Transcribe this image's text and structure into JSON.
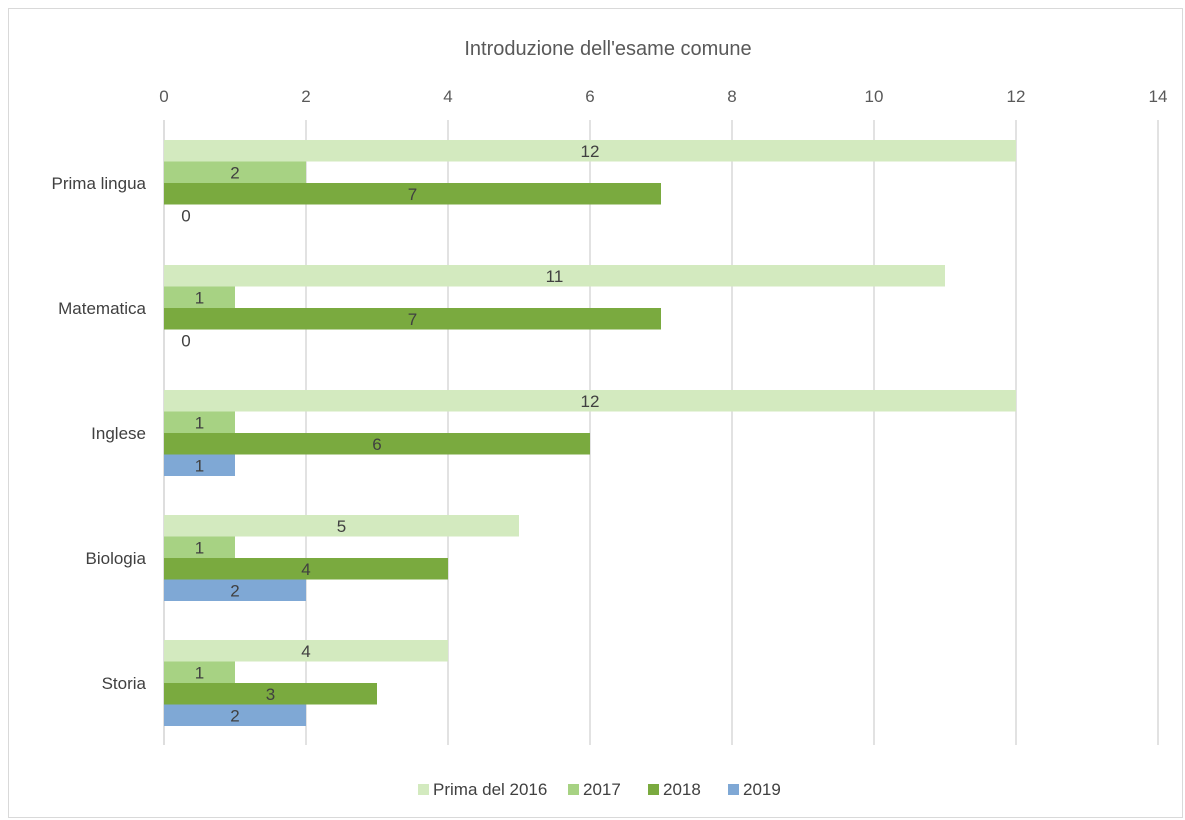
{
  "chart_data": {
    "type": "bar",
    "orientation": "horizontal",
    "title": "Introduzione dell'esame comune",
    "categories": [
      "Prima lingua",
      "Matematica",
      "Inglese",
      "Biologia",
      "Storia"
    ],
    "series": [
      {
        "name": "Prima del 2016",
        "color": "#d3eabf",
        "values": [
          12,
          11,
          12,
          5,
          4
        ]
      },
      {
        "name": "2017",
        "color": "#a7d283",
        "values": [
          2,
          1,
          1,
          1,
          1
        ]
      },
      {
        "name": "2018",
        "color": "#7aaa3f",
        "values": [
          7,
          7,
          6,
          4,
          3
        ]
      },
      {
        "name": "2019",
        "color": "#7fa8d5",
        "values": [
          0,
          0,
          1,
          2,
          2
        ]
      }
    ],
    "xlim": [
      0,
      14
    ],
    "x_ticks": [
      "0",
      "2",
      "4",
      "6",
      "8",
      "10",
      "12",
      "14"
    ],
    "x_axis_position": "top",
    "grid": true,
    "legend_position": "bottom",
    "data_labels": true
  }
}
